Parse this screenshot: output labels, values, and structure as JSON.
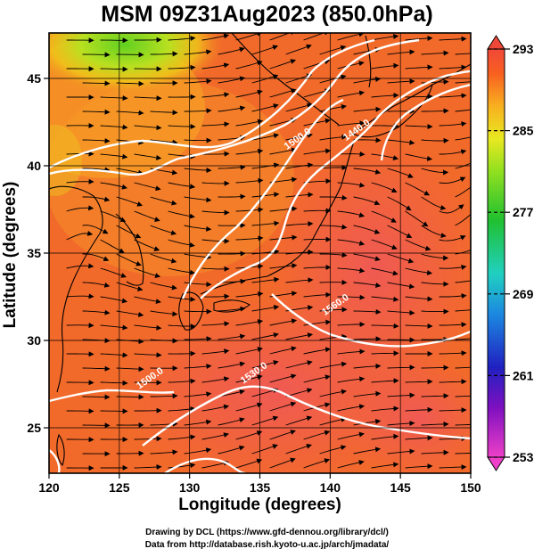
{
  "title": "MSM 09Z31Aug2023 (850.0hPa)",
  "xaxis": {
    "label": "Longitude (degrees)",
    "range": [
      120,
      150
    ],
    "ticks": [
      {
        "value": 120,
        "label": "120"
      },
      {
        "value": 125,
        "label": "125"
      },
      {
        "value": 130,
        "label": "130"
      },
      {
        "value": 135,
        "label": "135"
      },
      {
        "value": 140,
        "label": "140"
      },
      {
        "value": 145,
        "label": "145"
      },
      {
        "value": 150,
        "label": "150"
      }
    ]
  },
  "yaxis": {
    "label": "Latitude  (degrees)",
    "range": [
      22.4,
      47.6
    ],
    "ticks": [
      {
        "value": 25,
        "label": "25"
      },
      {
        "value": 30,
        "label": "30"
      },
      {
        "value": 35,
        "label": "35"
      },
      {
        "value": 40,
        "label": "40"
      },
      {
        "value": 45,
        "label": "45"
      }
    ]
  },
  "colorbar": {
    "min": 253,
    "max": 293,
    "ticks": [
      {
        "value": 253,
        "label": "253"
      },
      {
        "value": 261,
        "label": "261"
      },
      {
        "value": 269,
        "label": "269"
      },
      {
        "value": 277,
        "label": "277"
      },
      {
        "value": 285,
        "label": "285"
      },
      {
        "value": 293,
        "label": "293"
      }
    ]
  },
  "contour_labels": [
    {
      "text": "1440.0",
      "lon": 142.0,
      "lat": 41.9
    },
    {
      "text": "1500.0",
      "lon": 137.8,
      "lat": 41.4
    },
    {
      "text": "1500.0",
      "lon": 127.3,
      "lat": 27.7
    },
    {
      "text": "1530.0",
      "lon": 134.7,
      "lat": 28.0
    },
    {
      "text": "1560.0",
      "lon": 140.5,
      "lat": 31.9
    }
  ],
  "credits": {
    "line1": "Drawing by DCL (https://www.gfd-dennou.org/library/dcl/)",
    "line2": "Data from http://database.rish.kyoto-u.ac.jp/arch/jmadata/"
  }
}
